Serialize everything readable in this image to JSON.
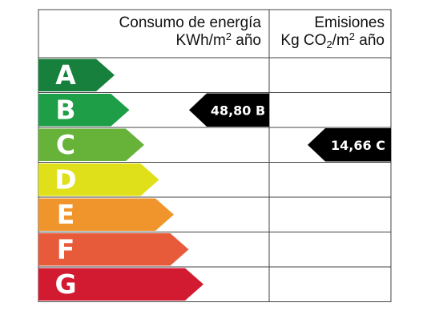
{
  "header": {
    "energy": {
      "title": "Consumo de energía",
      "unit_prefix": "KWh/m",
      "unit_sup": "2",
      "unit_suffix": " año"
    },
    "emissions": {
      "title": "Emisiones",
      "unit_prefix": "Kg CO",
      "unit_sub": "2",
      "unit_mid": "/m",
      "unit_sup": "2",
      "unit_suffix": " año"
    }
  },
  "ratings": [
    {
      "letter": "A",
      "color": "#16803c"
    },
    {
      "letter": "B",
      "color": "#1e9e47"
    },
    {
      "letter": "C",
      "color": "#67b33a"
    },
    {
      "letter": "D",
      "color": "#e0e01a"
    },
    {
      "letter": "E",
      "color": "#f0952c"
    },
    {
      "letter": "F",
      "color": "#e85b3a"
    },
    {
      "letter": "G",
      "color": "#d21a30"
    }
  ],
  "energy_indicator": {
    "label": "48,80 B",
    "rating": "B"
  },
  "emissions_indicator": {
    "label": "14,66 C",
    "rating": "C"
  }
}
